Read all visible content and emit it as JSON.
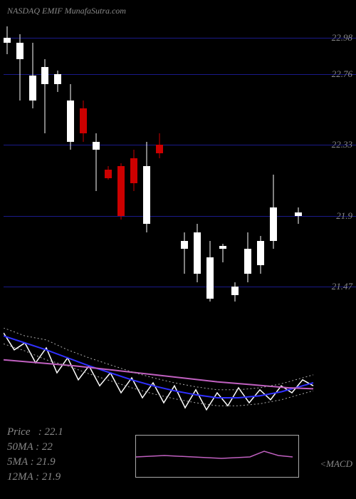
{
  "header": {
    "text": "NASDAQ EMIF MunafaSutra.com"
  },
  "price_chart": {
    "type": "candlestick",
    "background_color": "#000000",
    "hline_color": "#1a1a8a",
    "label_color": "#888888",
    "label_fontsize": 13,
    "ylim": [
      21.2,
      23.1
    ],
    "horizontal_lines": [
      {
        "value": 22.98,
        "label": "22.98"
      },
      {
        "value": 22.76,
        "label": "22.76"
      },
      {
        "value": 22.33,
        "label": "22.33"
      },
      {
        "value": 21.9,
        "label": "21.9"
      },
      {
        "value": 21.47,
        "label": "21.47"
      }
    ],
    "candles": [
      {
        "x": 0,
        "open": 22.95,
        "high": 23.05,
        "low": 22.88,
        "close": 22.98,
        "color": "white"
      },
      {
        "x": 1,
        "open": 22.85,
        "high": 23.0,
        "low": 22.6,
        "close": 22.95,
        "color": "white"
      },
      {
        "x": 2,
        "open": 22.75,
        "high": 22.95,
        "low": 22.55,
        "close": 22.6,
        "color": "white"
      },
      {
        "x": 3,
        "open": 22.7,
        "high": 22.85,
        "low": 22.4,
        "close": 22.8,
        "color": "white"
      },
      {
        "x": 4,
        "open": 22.7,
        "high": 22.78,
        "low": 22.65,
        "close": 22.76,
        "color": "white"
      },
      {
        "x": 5,
        "open": 22.35,
        "high": 22.7,
        "low": 22.3,
        "close": 22.6,
        "color": "white"
      },
      {
        "x": 6,
        "open": 22.55,
        "high": 22.6,
        "low": 22.35,
        "close": 22.4,
        "color": "red"
      },
      {
        "x": 7,
        "open": 22.3,
        "high": 22.4,
        "low": 22.05,
        "close": 22.35,
        "color": "white"
      },
      {
        "x": 8,
        "open": 22.18,
        "high": 22.2,
        "low": 22.12,
        "close": 22.13,
        "color": "red"
      },
      {
        "x": 9,
        "open": 22.2,
        "high": 22.22,
        "low": 21.88,
        "close": 21.9,
        "color": "red"
      },
      {
        "x": 10,
        "open": 22.25,
        "high": 22.3,
        "low": 22.05,
        "close": 22.1,
        "color": "red"
      },
      {
        "x": 11,
        "open": 22.2,
        "high": 22.35,
        "low": 21.8,
        "close": 21.85,
        "color": "white"
      },
      {
        "x": 12,
        "open": 22.33,
        "high": 22.4,
        "low": 22.25,
        "close": 22.28,
        "color": "red"
      },
      {
        "x": 14,
        "open": 21.7,
        "high": 21.8,
        "low": 21.55,
        "close": 21.75,
        "color": "white"
      },
      {
        "x": 15,
        "open": 21.55,
        "high": 21.85,
        "low": 21.5,
        "close": 21.8,
        "color": "white"
      },
      {
        "x": 16,
        "open": 21.65,
        "high": 21.75,
        "low": 21.38,
        "close": 21.4,
        "color": "white"
      },
      {
        "x": 17,
        "open": 21.7,
        "high": 21.73,
        "low": 21.62,
        "close": 21.72,
        "color": "white"
      },
      {
        "x": 18,
        "open": 21.42,
        "high": 21.5,
        "low": 21.38,
        "close": 21.47,
        "color": "white"
      },
      {
        "x": 19,
        "open": 21.7,
        "high": 21.8,
        "low": 21.5,
        "close": 21.55,
        "color": "white"
      },
      {
        "x": 20,
        "open": 21.6,
        "high": 21.78,
        "low": 21.55,
        "close": 21.75,
        "color": "white"
      },
      {
        "x": 21,
        "open": 21.95,
        "high": 22.15,
        "low": 21.7,
        "close": 21.75,
        "color": "white"
      },
      {
        "x": 23,
        "open": 21.9,
        "high": 21.95,
        "low": 21.85,
        "close": 21.92,
        "color": "white"
      }
    ],
    "candle_width": 10,
    "x_count": 25
  },
  "indicator_chart": {
    "type": "line",
    "lines": [
      {
        "name": "white_line",
        "color": "#ffffff",
        "width": 1.5,
        "points": [
          [
            0,
            95
          ],
          [
            15,
            78
          ],
          [
            30,
            85
          ],
          [
            45,
            65
          ],
          [
            60,
            80
          ],
          [
            75,
            55
          ],
          [
            90,
            70
          ],
          [
            105,
            48
          ],
          [
            120,
            62
          ],
          [
            135,
            42
          ],
          [
            150,
            55
          ],
          [
            165,
            35
          ],
          [
            180,
            50
          ],
          [
            195,
            30
          ],
          [
            210,
            45
          ],
          [
            225,
            25
          ],
          [
            240,
            42
          ],
          [
            255,
            20
          ],
          [
            270,
            38
          ],
          [
            285,
            18
          ],
          [
            300,
            35
          ],
          [
            315,
            22
          ],
          [
            330,
            40
          ],
          [
            345,
            25
          ],
          [
            360,
            38
          ],
          [
            375,
            28
          ],
          [
            390,
            42
          ],
          [
            405,
            35
          ],
          [
            420,
            48
          ],
          [
            435,
            42
          ]
        ]
      },
      {
        "name": "blue_line",
        "color": "#3030ff",
        "width": 2,
        "points": [
          [
            0,
            92
          ],
          [
            30,
            85
          ],
          [
            60,
            78
          ],
          [
            90,
            70
          ],
          [
            120,
            62
          ],
          [
            150,
            55
          ],
          [
            180,
            48
          ],
          [
            210,
            42
          ],
          [
            240,
            37
          ],
          [
            270,
            33
          ],
          [
            300,
            30
          ],
          [
            330,
            30
          ],
          [
            360,
            32
          ],
          [
            390,
            36
          ],
          [
            420,
            42
          ],
          [
            435,
            45
          ]
        ]
      },
      {
        "name": "magenta_line",
        "color": "#c060c0",
        "width": 2,
        "points": [
          [
            0,
            68
          ],
          [
            50,
            65
          ],
          [
            100,
            62
          ],
          [
            150,
            58
          ],
          [
            200,
            54
          ],
          [
            250,
            50
          ],
          [
            300,
            46
          ],
          [
            350,
            43
          ],
          [
            400,
            40
          ],
          [
            435,
            39
          ]
        ]
      },
      {
        "name": "dotted_upper",
        "color": "#aaaaaa",
        "width": 1,
        "dashed": true,
        "points": [
          [
            0,
            100
          ],
          [
            30,
            92
          ],
          [
            60,
            88
          ],
          [
            90,
            78
          ],
          [
            120,
            70
          ],
          [
            150,
            63
          ],
          [
            180,
            56
          ],
          [
            210,
            50
          ],
          [
            240,
            45
          ],
          [
            270,
            41
          ],
          [
            300,
            38
          ],
          [
            330,
            38
          ],
          [
            360,
            40
          ],
          [
            390,
            44
          ],
          [
            420,
            50
          ],
          [
            435,
            53
          ]
        ]
      },
      {
        "name": "dotted_lower",
        "color": "#aaaaaa",
        "width": 1,
        "dashed": true,
        "points": [
          [
            0,
            84
          ],
          [
            30,
            77
          ],
          [
            60,
            68
          ],
          [
            90,
            62
          ],
          [
            120,
            54
          ],
          [
            150,
            47
          ],
          [
            180,
            40
          ],
          [
            210,
            34
          ],
          [
            240,
            29
          ],
          [
            270,
            25
          ],
          [
            300,
            22
          ],
          [
            330,
            22
          ],
          [
            360,
            24
          ],
          [
            390,
            28
          ],
          [
            420,
            34
          ],
          [
            435,
            37
          ]
        ]
      }
    ],
    "height_scale": 100
  },
  "macd_inset": {
    "border_color": "#aaaaaa",
    "line": {
      "color": "#c060c0",
      "points": [
        [
          0,
          30
        ],
        [
          40,
          28
        ],
        [
          80,
          30
        ],
        [
          120,
          32
        ],
        [
          160,
          30
        ],
        [
          180,
          22
        ],
        [
          200,
          28
        ],
        [
          220,
          30
        ]
      ]
    },
    "label": "<<Live\nMACD"
  },
  "stats": {
    "price_label": "Price",
    "price_value": "22.1",
    "ma50_label": "50MA",
    "ma50_value": "22",
    "ma5_label": "5MA",
    "ma5_value": "21.9",
    "ma12_label": "12MA",
    "ma12_value": "21.9"
  }
}
